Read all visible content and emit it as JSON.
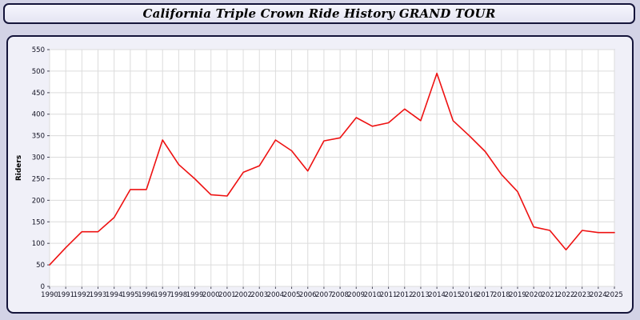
{
  "title": "California Triple Crown Ride History GRAND TOUR",
  "chart_data": {
    "type": "line",
    "title": "California Triple Crown Ride History GRAND TOUR",
    "xlabel": "",
    "ylabel": "Riders",
    "ylim": [
      0,
      550
    ],
    "ytick_step": 50,
    "grid": true,
    "legend": "none",
    "x": [
      1990,
      1991,
      1992,
      1993,
      1994,
      1995,
      1996,
      1997,
      1998,
      1999,
      2000,
      2001,
      2002,
      2003,
      2004,
      2005,
      2006,
      2007,
      2008,
      2009,
      2010,
      2011,
      2012,
      2013,
      2014,
      2015,
      2016,
      2017,
      2018,
      2019,
      2020,
      2021,
      2022,
      2023,
      2024,
      2025
    ],
    "series": [
      {
        "name": "Riders",
        "color": "#ee1111",
        "values": [
          50,
          90,
          127,
          127,
          160,
          225,
          225,
          340,
          283,
          250,
          213,
          210,
          265,
          280,
          340,
          315,
          268,
          338,
          345,
          392,
          372,
          380,
          412,
          385,
          495,
          385,
          350,
          313,
          260,
          220,
          138,
          130,
          85,
          130,
          125,
          125
        ]
      }
    ],
    "colors": {
      "plot_background": "#ffffff",
      "grid_line": "#dcdcdc",
      "axis_text": "#111122",
      "panel_border": "#15153a"
    }
  }
}
